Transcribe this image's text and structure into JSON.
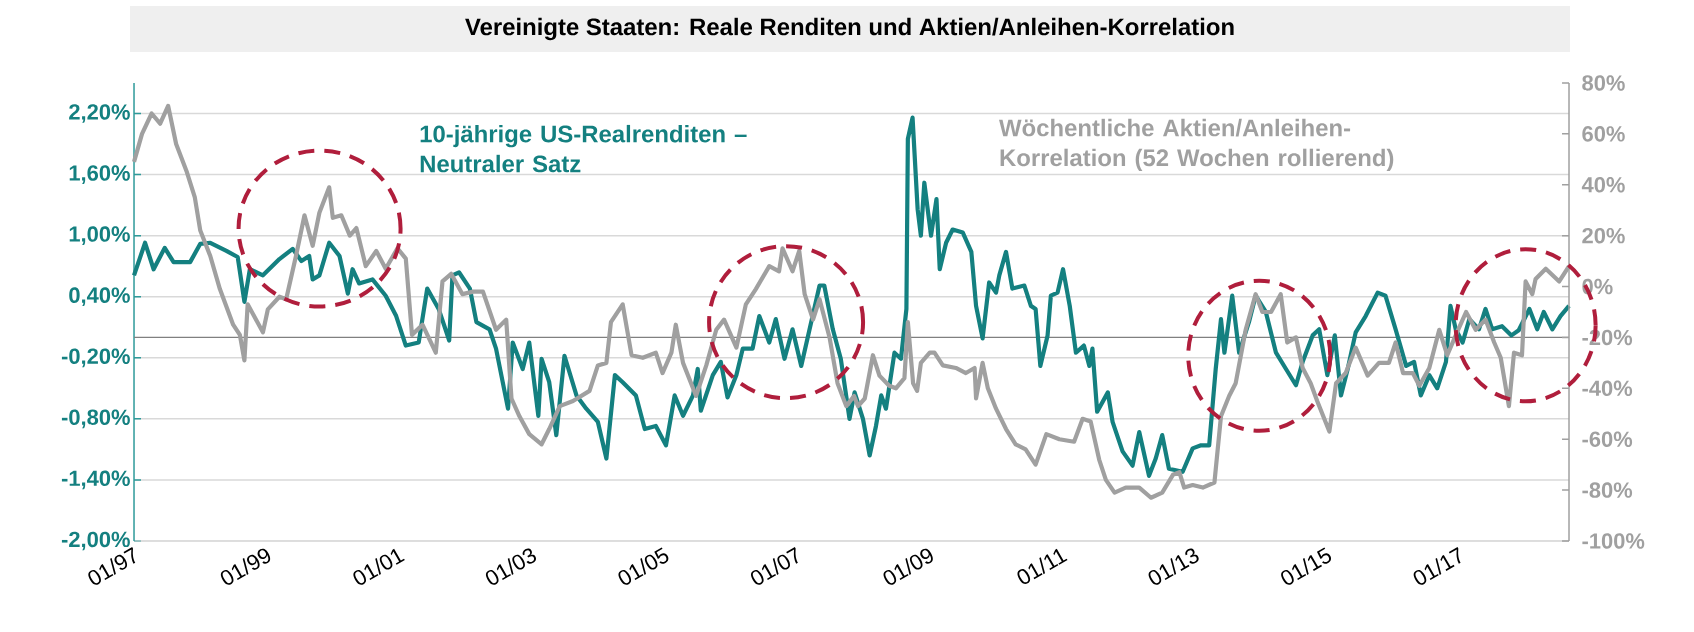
{
  "chart_data": {
    "type": "line",
    "title": "Vereinigte Staaten: Reale Renditen und Aktien/Anleihen-Korrelation",
    "xlim": [
      "1997-01-01",
      "2018-08-28"
    ],
    "xticks": [
      {
        "value": "1997-01",
        "label": "01/97"
      },
      {
        "value": "1999-01",
        "label": "01/99"
      },
      {
        "value": "2001-01",
        "label": "01/01"
      },
      {
        "value": "2003-01",
        "label": "01/03"
      },
      {
        "value": "2005-01",
        "label": "01/05"
      },
      {
        "value": "2007-01",
        "label": "01/07"
      },
      {
        "value": "2009-01",
        "label": "01/09"
      },
      {
        "value": "2011-01",
        "label": "01/11"
      },
      {
        "value": "2013-01",
        "label": "01/13"
      },
      {
        "value": "2015-01",
        "label": "01/15"
      },
      {
        "value": "2017-01",
        "label": "01/17"
      }
    ],
    "ylim": [
      -2.0,
      2.5
    ],
    "yticks": [
      {
        "value": -2.0,
        "label": "-2,00%"
      },
      {
        "value": -1.4,
        "label": "-1,40%"
      },
      {
        "value": -0.8,
        "label": "-0,80%"
      },
      {
        "value": -0.2,
        "label": "-0,20%"
      },
      {
        "value": 0.4,
        "label": "0,40%"
      },
      {
        "value": 1.0,
        "label": "1,00%"
      },
      {
        "value": 1.6,
        "label": "1,60%"
      },
      {
        "value": 2.2,
        "label": "2,20%"
      }
    ],
    "y2lim": [
      -100,
      80
    ],
    "y2ticks": [
      {
        "value": -100,
        "label": "-100%"
      },
      {
        "value": -80,
        "label": "-80%"
      },
      {
        "value": -60,
        "label": "-60%"
      },
      {
        "value": -40,
        "label": "-40%"
      },
      {
        "value": -20,
        "label": "-20%"
      },
      {
        "value": 0,
        "label": "0%"
      },
      {
        "value": 20,
        "label": "20%"
      },
      {
        "value": 40,
        "label": "40%"
      },
      {
        "value": 60,
        "label": "60%"
      },
      {
        "value": 80,
        "label": "80%"
      }
    ],
    "grid": "y",
    "marker": "none",
    "ref_lines": [
      {
        "axis": "y",
        "value": 0,
        "color": "#808080"
      }
    ],
    "series": [
      {
        "name": "10-jährige US-Realrenditen – Neutraler Satz",
        "color": "#148080",
        "x": [
          "1997-01-01",
          "1997-03-03",
          "1997-04-19",
          "1997-06-19",
          "1997-08-07",
          "1997-11-06",
          "1998-01-01",
          "1998-02-25",
          "1998-05-25",
          "1998-07-26",
          "1998-09-01",
          "1998-10-01",
          "1998-12-12",
          "1999-03-13",
          "1999-05-25",
          "1999-07-12",
          "1999-08-24",
          "1999-09-12",
          "1999-10-19",
          "1999-12-12",
          "2000-02-07",
          "2000-03-24",
          "2000-04-19",
          "2000-05-25",
          "2000-08-07",
          "2000-10-19",
          "2000-12-16",
          "2001-02-07",
          "2001-04-19",
          "2001-06-05",
          "2001-08-07",
          "2001-10-04",
          "2001-10-22",
          "2001-11-27",
          "2002-01-26",
          "2002-03-03",
          "2002-05-14",
          "2002-06-19",
          "2002-08-24",
          "2002-09-19",
          "2002-11-13",
          "2002-12-19",
          "2003-02-07",
          "2003-02-25",
          "2003-04-08",
          "2003-05-17",
          "2003-07-01",
          "2003-09-05",
          "2003-10-29",
          "2004-01-01",
          "2004-02-17",
          "2004-04-04",
          "2004-05-17",
          "2004-07-29",
          "2004-09-16",
          "2004-11-16",
          "2005-01-11",
          "2005-02-28",
          "2005-04-15",
          "2005-06-09",
          "2005-07-05",
          "2005-07-22",
          "2005-09-26",
          "2005-11-09",
          "2005-12-16",
          "2006-02-03",
          "2006-03-10",
          "2006-05-03",
          "2006-06-09",
          "2006-08-03",
          "2006-09-08",
          "2006-10-26",
          "2006-12-09",
          "2007-01-26",
          "2007-03-13",
          "2007-05-07",
          "2007-06-02",
          "2007-07-19",
          "2007-09-01",
          "2007-10-19",
          "2007-11-16",
          "2008-01-01",
          "2008-02-07",
          "2008-03-13",
          "2008-04-11",
          "2008-05-07",
          "2008-06-23",
          "2008-07-29",
          "2008-08-28",
          "2008-09-05",
          "2008-10-01",
          "2008-10-29",
          "2008-11-16",
          "2008-12-05",
          "2009-01-11",
          "2009-02-10",
          "2009-02-28",
          "2009-04-04",
          "2009-05-10",
          "2009-07-05",
          "2009-08-21",
          "2009-09-16",
          "2009-10-22",
          "2009-11-27",
          "2010-01-04",
          "2010-01-22",
          "2010-02-28",
          "2010-04-04",
          "2010-06-09",
          "2010-07-15",
          "2010-08-10",
          "2010-09-05",
          "2010-10-15",
          "2010-11-02",
          "2010-12-09",
          "2011-01-08",
          "2011-02-14",
          "2011-03-20",
          "2011-05-03",
          "2011-06-02",
          "2011-06-19",
          "2011-07-15",
          "2011-09-12",
          "2011-10-08",
          "2011-12-02",
          "2012-01-26",
          "2012-03-03",
          "2012-04-26",
          "2012-06-02",
          "2012-07-08",
          "2012-08-14",
          "2012-10-29",
          "2012-12-23",
          "2013-02-07",
          "2013-03-24",
          "2013-04-29",
          "2013-05-28",
          "2013-06-16",
          "2013-07-29",
          "2013-09-05",
          "2013-10-29",
          "2013-12-05",
          "2014-01-30",
          "2014-03-27",
          "2014-05-21",
          "2014-07-15",
          "2014-08-21",
          "2014-10-15",
          "2014-11-20",
          "2015-01-04",
          "2015-02-14",
          "2015-03-20",
          "2015-04-26",
          "2015-06-09",
          "2015-08-03",
          "2015-10-08",
          "2015-11-20",
          "2016-01-15",
          "2016-03-13",
          "2016-04-26",
          "2016-06-02",
          "2016-07-19",
          "2016-09-01",
          "2016-10-19",
          "2016-11-13",
          "2016-12-12",
          "2017-01-19",
          "2017-02-25",
          "2017-04-19",
          "2017-05-25",
          "2017-07-01",
          "2017-08-24",
          "2017-10-15",
          "2017-11-24",
          "2018-01-22",
          "2018-03-06",
          "2018-04-11",
          "2018-05-28",
          "2018-07-12",
          "2018-08-28"
        ],
        "values": [
          0.61,
          0.93,
          0.67,
          0.88,
          0.74,
          0.74,
          0.92,
          0.93,
          0.85,
          0.79,
          0.35,
          0.67,
          0.61,
          0.77,
          0.87,
          0.75,
          0.8,
          0.57,
          0.61,
          0.93,
          0.8,
          0.43,
          0.67,
          0.53,
          0.57,
          0.41,
          0.21,
          -0.08,
          -0.05,
          0.48,
          0.28,
          -0.03,
          0.61,
          0.64,
          0.48,
          0.15,
          0.08,
          -0.11,
          -0.7,
          -0.05,
          -0.31,
          -0.05,
          -0.77,
          -0.21,
          -0.44,
          -0.96,
          -0.18,
          -0.57,
          -0.7,
          -0.83,
          -1.19,
          -0.37,
          -0.44,
          -0.57,
          -0.9,
          -0.87,
          -1.06,
          -0.57,
          -0.77,
          -0.57,
          -0.31,
          -0.72,
          -0.37,
          -0.24,
          -0.59,
          -0.37,
          -0.11,
          -0.11,
          0.21,
          -0.05,
          0.18,
          -0.21,
          0.08,
          -0.28,
          0.08,
          0.51,
          0.51,
          0.08,
          -0.21,
          -0.8,
          -0.54,
          -0.8,
          -1.16,
          -0.87,
          -0.57,
          -0.7,
          -0.15,
          -0.21,
          0.28,
          1.95,
          2.16,
          1.26,
          1.0,
          1.52,
          1.0,
          1.36,
          0.67,
          0.93,
          1.06,
          1.03,
          0.84,
          0.31,
          -0.01,
          0.54,
          0.44,
          0.61,
          0.84,
          0.48,
          0.51,
          0.31,
          0.28,
          -0.28,
          0.02,
          0.41,
          0.44,
          0.67,
          0.31,
          -0.15,
          -0.08,
          -0.28,
          -0.11,
          -0.73,
          -0.54,
          -0.83,
          -1.12,
          -1.26,
          -0.93,
          -1.36,
          -1.19,
          -0.96,
          -1.29,
          -1.32,
          -1.09,
          -1.06,
          -1.06,
          -0.31,
          0.18,
          -0.15,
          0.41,
          -0.15,
          0.15,
          0.41,
          0.25,
          -0.15,
          -0.31,
          -0.47,
          -0.24,
          0.02,
          0.08,
          -0.37,
          0.02,
          -0.57,
          -0.31,
          0.05,
          0.21,
          0.44,
          0.41,
          0.08,
          -0.28,
          -0.24,
          -0.57,
          -0.37,
          -0.5,
          -0.24,
          0.31,
          0.08,
          -0.05,
          0.18,
          0.08,
          0.28,
          0.08,
          0.11,
          0.02,
          0.07,
          0.28,
          0.08,
          0.25,
          0.08,
          0.21,
          0.31
        ]
      },
      {
        "name": "Wöchentliche Aktien/Anleihen-Korrelation (52 Wochen rollierend)",
        "color": "#a0a0a0",
        "axis": "y2",
        "x": [
          "1997-01-01",
          "1997-02-14",
          "1997-04-08",
          "1997-05-25",
          "1997-07-08",
          "1997-08-21",
          "1997-10-19",
          "1997-12-02",
          "1998-01-01",
          "1998-02-25",
          "1998-04-19",
          "1998-07-01",
          "1998-08-07",
          "1998-09-01",
          "1998-09-19",
          "1998-12-12",
          "1999-01-08",
          "1999-03-13",
          "1999-04-19",
          "1999-06-12",
          "1999-07-29",
          "1999-09-12",
          "1999-10-19",
          "1999-12-12",
          "2000-01-01",
          "2000-02-17",
          "2000-04-04",
          "2000-05-10",
          "2000-07-01",
          "2000-08-28",
          "2000-10-19",
          "2000-12-23",
          "2001-02-07",
          "2001-03-13",
          "2001-05-10",
          "2001-07-22",
          "2001-08-28",
          "2001-10-15",
          "2001-12-16",
          "2002-02-14",
          "2002-04-08",
          "2002-06-19",
          "2002-08-14",
          "2002-09-12",
          "2002-10-26",
          "2002-12-19",
          "2003-02-25",
          "2003-04-08",
          "2003-06-05",
          "2003-08-17",
          "2003-11-16",
          "2004-01-01",
          "2004-02-17",
          "2004-03-13",
          "2004-05-17",
          "2004-07-05",
          "2004-09-05",
          "2004-11-16",
          "2004-12-23",
          "2005-02-10",
          "2005-03-06",
          "2005-04-15",
          "2005-06-26",
          "2005-08-21",
          "2005-10-15",
          "2005-11-27",
          "2006-02-03",
          "2006-03-27",
          "2006-05-21",
          "2006-08-03",
          "2006-09-26",
          "2006-10-15",
          "2006-12-09",
          "2007-01-15",
          "2007-02-14",
          "2007-04-01",
          "2007-05-07",
          "2007-07-01",
          "2007-08-14",
          "2007-10-01",
          "2007-11-13",
          "2007-12-05",
          "2008-01-11",
          "2008-02-25",
          "2008-04-01",
          "2008-05-25",
          "2008-07-01",
          "2008-08-17",
          "2008-09-05",
          "2008-10-04",
          "2008-10-26",
          "2008-11-16",
          "2009-01-04",
          "2009-01-30",
          "2009-03-17",
          "2009-05-28",
          "2009-07-22",
          "2009-09-08",
          "2009-09-16",
          "2009-10-22",
          "2009-11-20",
          "2010-01-04",
          "2010-02-28",
          "2010-04-22",
          "2010-06-16",
          "2010-08-10",
          "2010-10-08",
          "2010-12-19",
          "2011-03-10",
          "2011-04-26",
          "2011-06-09",
          "2011-07-26",
          "2011-09-01",
          "2011-10-19",
          "2011-12-19",
          "2012-03-03",
          "2012-05-07",
          "2012-07-08",
          "2012-09-05",
          "2012-10-11",
          "2012-11-06",
          "2012-12-23",
          "2013-02-17",
          "2013-04-22",
          "2013-05-28",
          "2013-07-12",
          "2013-08-17",
          "2013-10-11",
          "2013-12-05",
          "2014-01-11",
          "2014-02-28",
          "2014-04-22",
          "2014-05-28",
          "2014-07-15",
          "2014-08-21",
          "2014-10-04",
          "2014-11-09",
          "2015-01-15",
          "2015-02-21",
          "2015-04-15",
          "2015-06-09",
          "2015-08-14",
          "2015-10-15",
          "2015-12-09",
          "2016-01-15",
          "2016-02-25",
          "2016-04-19",
          "2016-05-25",
          "2016-07-19",
          "2016-09-12",
          "2016-10-26",
          "2016-12-19",
          "2017-02-07",
          "2017-04-01",
          "2017-05-25",
          "2017-07-12",
          "2017-08-17",
          "2017-10-01",
          "2017-10-29",
          "2017-12-12",
          "2018-01-01",
          "2018-02-07",
          "2018-02-25",
          "2018-04-22",
          "2018-07-05",
          "2018-08-28"
        ],
        "values": [
          49,
          60,
          68,
          64,
          71,
          56,
          45,
          35,
          22,
          12,
          -1,
          -15,
          -19,
          -29,
          -7,
          -18,
          -9,
          -4,
          -5,
          12,
          28,
          16,
          29,
          39,
          27,
          28,
          20,
          23,
          8,
          14,
          7,
          15,
          11,
          -19,
          -15,
          -26,
          2,
          5,
          -3,
          -2,
          -2,
          -17,
          -13,
          -44,
          -51,
          -58,
          -62,
          -56,
          -47,
          -45,
          -41,
          -31,
          -30,
          -14,
          -7,
          -27,
          -28,
          -26,
          -34,
          -26,
          -15,
          -30,
          -43,
          -31,
          -17,
          -13,
          -24,
          -7,
          -1,
          8,
          6,
          15,
          6,
          14,
          -3,
          -13,
          -5,
          -20,
          -38,
          -47,
          -43,
          -47,
          -44,
          -27,
          -35,
          -39,
          -40,
          -36,
          -14,
          -38,
          -41,
          -30,
          -26,
          -26,
          -31,
          -32,
          -34,
          -32,
          -44,
          -30,
          -40,
          -48,
          -56,
          -62,
          -64,
          -70,
          -58,
          -60,
          -61,
          -52,
          -53,
          -68,
          -76,
          -81,
          -79,
          -79,
          -83,
          -81,
          -74,
          -73,
          -79,
          -78,
          -79,
          -77,
          -51,
          -43,
          -38,
          -17,
          -3,
          -10,
          -10,
          -3,
          -22,
          -20,
          -32,
          -38,
          -45,
          -57,
          -38,
          -34,
          -24,
          -35,
          -30,
          -30,
          -22,
          -34,
          -34,
          -39,
          -32,
          -17,
          -27,
          -18,
          -10,
          -17,
          -13,
          -22,
          -28,
          -47,
          -26,
          -27,
          2,
          -3,
          3,
          7,
          2,
          8
        ]
      }
    ]
  }
}
